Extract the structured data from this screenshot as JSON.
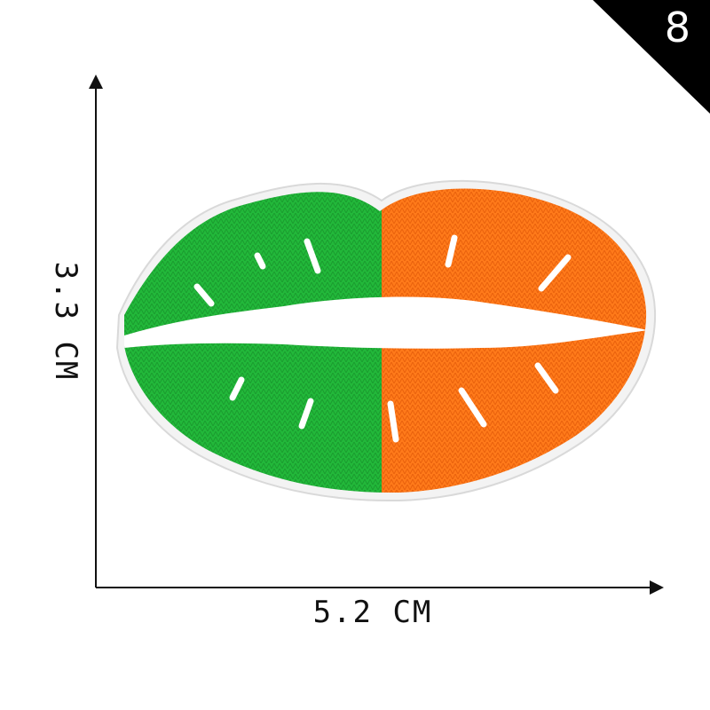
{
  "badge": {
    "number": "8",
    "background_color": "#000000",
    "text_color": "#ffffff"
  },
  "dimensions": {
    "height_label": "3.3 CM",
    "width_label": "5.2 CM"
  },
  "patch": {
    "subject": "embroidered-lips-patch",
    "colors": {
      "left_half": "#22b83a",
      "right_half": "#ff7a1a",
      "center": "#ffffff",
      "border": "#e8e8e8"
    }
  }
}
